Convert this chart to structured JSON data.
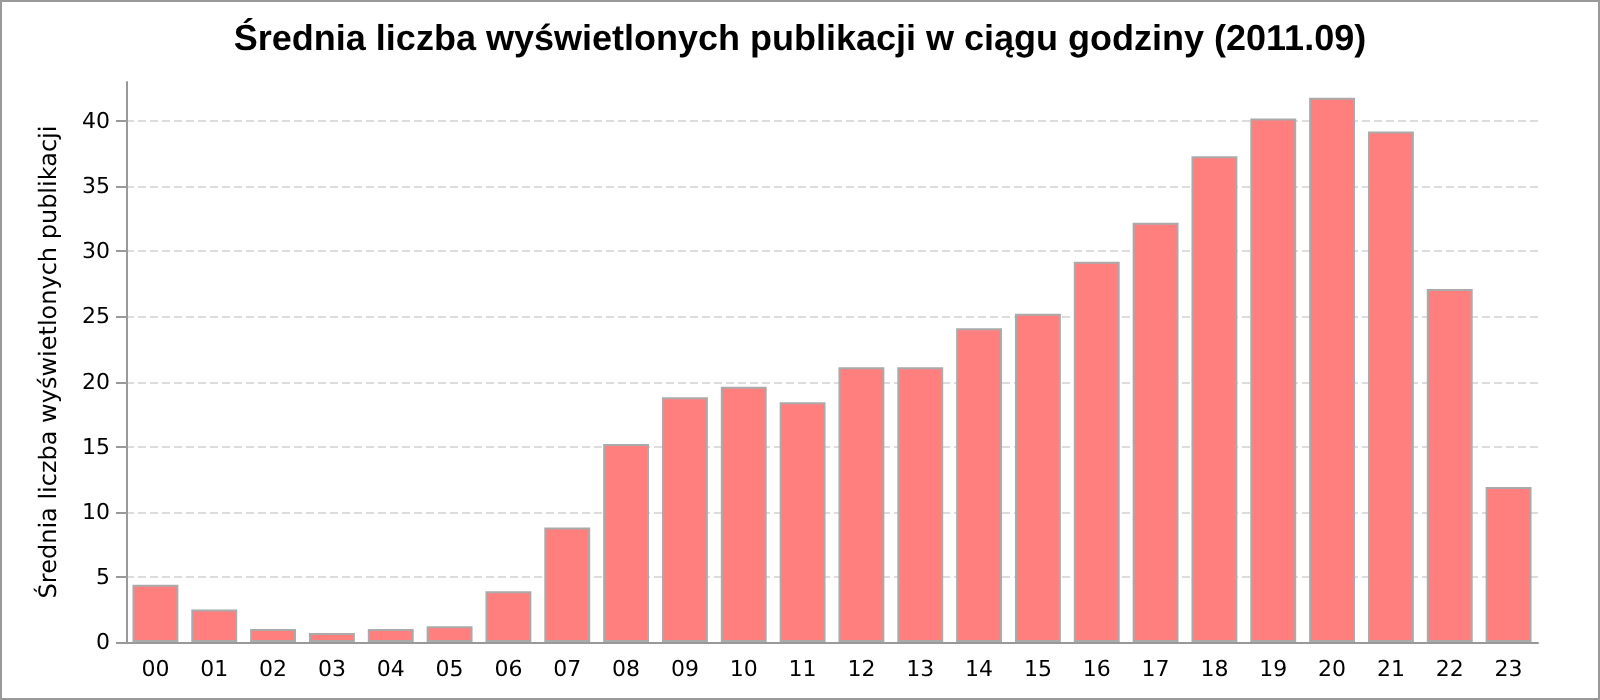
{
  "chart_data": {
    "type": "bar",
    "title": "Średnia liczba wyświetlonych publikacji w ciągu godziny (2011.09)",
    "ylabel": "Średnia liczba wyświetlonych publikacji",
    "categories": [
      "00",
      "01",
      "02",
      "03",
      "04",
      "05",
      "06",
      "07",
      "08",
      "09",
      "10",
      "11",
      "12",
      "13",
      "14",
      "15",
      "16",
      "17",
      "18",
      "19",
      "20",
      "21",
      "22",
      "23"
    ],
    "values": [
      4.4,
      2.5,
      1.0,
      0.7,
      1.0,
      1.2,
      3.9,
      8.8,
      15.2,
      18.8,
      19.6,
      18.4,
      21.1,
      21.1,
      24.1,
      25.2,
      29.2,
      32.2,
      37.3,
      40.2,
      41.8,
      39.2,
      27.1,
      11.9
    ],
    "color": "#ff7f7f",
    "ylim": [
      0,
      43
    ],
    "yticks": [
      0,
      5,
      10,
      15,
      20,
      25,
      30,
      35,
      40
    ],
    "grid": "y"
  }
}
